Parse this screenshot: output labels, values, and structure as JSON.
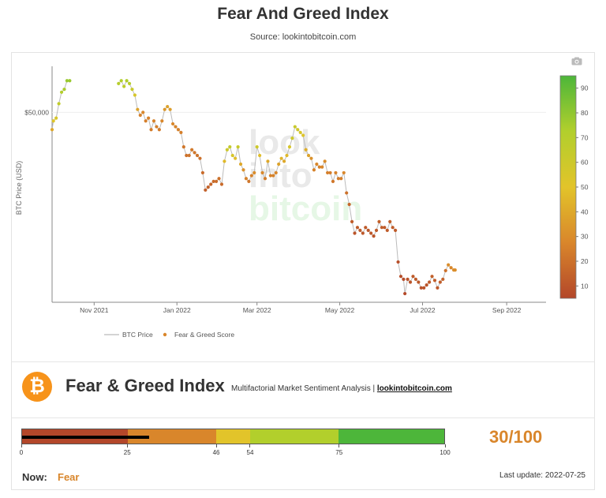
{
  "page": {
    "title": "Fear And Greed Index",
    "source": "Source: lookintobitcoin.com"
  },
  "chart_data": {
    "type": "line",
    "ylabel": "BTC Price (USD)",
    "y_tick_labels": [
      "$50,000"
    ],
    "y_tick_values": [
      50000
    ],
    "x_tick_labels": [
      "Nov 2021",
      "Jan 2022",
      "Mar 2022",
      "May 2022",
      "Jul 2022",
      "Sep 2022"
    ],
    "x_tick_dates": [
      "2021-11-01",
      "2022-01-01",
      "2022-03-01",
      "2022-05-01",
      "2022-07-01",
      "2022-09-01"
    ],
    "xlim": [
      "2021-10-01",
      "2022-09-30"
    ],
    "ylim": [
      17000,
      58000
    ],
    "legend": [
      "BTC Price",
      "Fear & Greed Score"
    ],
    "legend_position": "bottom",
    "grid": false,
    "watermark": [
      "look",
      "into",
      "bitcoin"
    ],
    "colorbar": {
      "min": 5,
      "max": 95,
      "ticks": [
        10,
        20,
        30,
        40,
        50,
        60,
        70,
        80,
        90
      ],
      "colors": [
        "#b3472a",
        "#d9862b",
        "#e2c42a",
        "#b2cf2c",
        "#4db63a"
      ]
    },
    "series": [
      {
        "name": "BTC Price",
        "color": "#bbbbbb",
        "gaps": [
          [
            "2021-10-14",
            "2021-11-19"
          ]
        ],
        "points": [
          {
            "date": "2021-10-01",
            "price": 47000,
            "score": 40
          },
          {
            "date": "2021-10-02",
            "price": 48500,
            "score": 52
          },
          {
            "date": "2021-10-04",
            "price": 49000,
            "score": 55
          },
          {
            "date": "2021-10-06",
            "price": 51500,
            "score": 66
          },
          {
            "date": "2021-10-08",
            "price": 53500,
            "score": 72
          },
          {
            "date": "2021-10-10",
            "price": 54000,
            "score": 74
          },
          {
            "date": "2021-10-12",
            "price": 55500,
            "score": 78
          },
          {
            "date": "2021-10-14",
            "price": 55500,
            "score": 78
          },
          {
            "date": "2021-11-19",
            "price": 55000,
            "score": 70
          },
          {
            "date": "2021-11-21",
            "price": 55500,
            "score": 72
          },
          {
            "date": "2021-11-23",
            "price": 54500,
            "score": 68
          },
          {
            "date": "2021-11-25",
            "price": 55500,
            "score": 73
          },
          {
            "date": "2021-11-27",
            "price": 55000,
            "score": 70
          },
          {
            "date": "2021-11-29",
            "price": 54000,
            "score": 62
          },
          {
            "date": "2021-12-01",
            "price": 53000,
            "score": 55
          },
          {
            "date": "2021-12-03",
            "price": 50500,
            "score": 38
          },
          {
            "date": "2021-12-05",
            "price": 49500,
            "score": 26
          },
          {
            "date": "2021-12-07",
            "price": 50000,
            "score": 28
          },
          {
            "date": "2021-12-09",
            "price": 48500,
            "score": 25
          },
          {
            "date": "2021-12-11",
            "price": 49000,
            "score": 26
          },
          {
            "date": "2021-12-13",
            "price": 47000,
            "score": 24
          },
          {
            "date": "2021-12-15",
            "price": 48500,
            "score": 26
          },
          {
            "date": "2021-12-17",
            "price": 47500,
            "score": 25
          },
          {
            "date": "2021-12-19",
            "price": 47000,
            "score": 24
          },
          {
            "date": "2021-12-21",
            "price": 48500,
            "score": 28
          },
          {
            "date": "2021-12-23",
            "price": 50500,
            "score": 34
          },
          {
            "date": "2021-12-25",
            "price": 51000,
            "score": 38
          },
          {
            "date": "2021-12-27",
            "price": 50500,
            "score": 36
          },
          {
            "date": "2021-12-29",
            "price": 48000,
            "score": 28
          },
          {
            "date": "2021-12-31",
            "price": 47500,
            "score": 27
          },
          {
            "date": "2022-01-02",
            "price": 47000,
            "score": 26
          },
          {
            "date": "2022-01-04",
            "price": 46500,
            "score": 25
          },
          {
            "date": "2022-01-06",
            "price": 44000,
            "score": 22
          },
          {
            "date": "2022-01-08",
            "price": 42500,
            "score": 20
          },
          {
            "date": "2022-01-10",
            "price": 42500,
            "score": 21
          },
          {
            "date": "2022-01-12",
            "price": 43500,
            "score": 23
          },
          {
            "date": "2022-01-14",
            "price": 43000,
            "score": 22
          },
          {
            "date": "2022-01-16",
            "price": 42500,
            "score": 21
          },
          {
            "date": "2022-01-18",
            "price": 42000,
            "score": 20
          },
          {
            "date": "2022-01-20",
            "price": 39500,
            "score": 18
          },
          {
            "date": "2022-01-22",
            "price": 36500,
            "score": 14
          },
          {
            "date": "2022-01-24",
            "price": 37000,
            "score": 15
          },
          {
            "date": "2022-01-26",
            "price": 37500,
            "score": 16
          },
          {
            "date": "2022-01-28",
            "price": 38000,
            "score": 18
          },
          {
            "date": "2022-01-30",
            "price": 38000,
            "score": 19
          },
          {
            "date": "2022-02-01",
            "price": 38500,
            "score": 20
          },
          {
            "date": "2022-02-03",
            "price": 37500,
            "score": 18
          },
          {
            "date": "2022-02-05",
            "price": 41500,
            "score": 46
          },
          {
            "date": "2022-02-07",
            "price": 43500,
            "score": 60
          },
          {
            "date": "2022-02-09",
            "price": 44000,
            "score": 64
          },
          {
            "date": "2022-02-11",
            "price": 42500,
            "score": 55
          },
          {
            "date": "2022-02-13",
            "price": 42000,
            "score": 48
          },
          {
            "date": "2022-02-15",
            "price": 44000,
            "score": 62
          },
          {
            "date": "2022-02-17",
            "price": 41000,
            "score": 40
          },
          {
            "date": "2022-02-19",
            "price": 40000,
            "score": 32
          },
          {
            "date": "2022-02-21",
            "price": 38500,
            "score": 26
          },
          {
            "date": "2022-02-23",
            "price": 38000,
            "score": 22
          },
          {
            "date": "2022-02-25",
            "price": 39000,
            "score": 26
          },
          {
            "date": "2022-02-27",
            "price": 39500,
            "score": 30
          },
          {
            "date": "2022-03-01",
            "price": 44000,
            "score": 60
          },
          {
            "date": "2022-03-03",
            "price": 42500,
            "score": 48
          },
          {
            "date": "2022-03-05",
            "price": 39500,
            "score": 28
          },
          {
            "date": "2022-03-07",
            "price": 38500,
            "score": 24
          },
          {
            "date": "2022-03-09",
            "price": 41500,
            "score": 40
          },
          {
            "date": "2022-03-11",
            "price": 39000,
            "score": 26
          },
          {
            "date": "2022-03-13",
            "price": 39000,
            "score": 26
          },
          {
            "date": "2022-03-15",
            "price": 39500,
            "score": 28
          },
          {
            "date": "2022-03-17",
            "price": 41000,
            "score": 38
          },
          {
            "date": "2022-03-19",
            "price": 42000,
            "score": 44
          },
          {
            "date": "2022-03-21",
            "price": 41500,
            "score": 40
          },
          {
            "date": "2022-03-23",
            "price": 42500,
            "score": 46
          },
          {
            "date": "2022-03-25",
            "price": 44000,
            "score": 55
          },
          {
            "date": "2022-03-27",
            "price": 45500,
            "score": 60
          },
          {
            "date": "2022-03-29",
            "price": 47500,
            "score": 62
          },
          {
            "date": "2022-03-31",
            "price": 47000,
            "score": 58
          },
          {
            "date": "2022-04-02",
            "price": 46500,
            "score": 55
          },
          {
            "date": "2022-04-04",
            "price": 46000,
            "score": 52
          },
          {
            "date": "2022-04-06",
            "price": 43500,
            "score": 42
          },
          {
            "date": "2022-04-08",
            "price": 42500,
            "score": 38
          },
          {
            "date": "2022-04-10",
            "price": 42000,
            "score": 32
          },
          {
            "date": "2022-04-12",
            "price": 40000,
            "score": 26
          },
          {
            "date": "2022-04-14",
            "price": 41000,
            "score": 28
          },
          {
            "date": "2022-04-16",
            "price": 40500,
            "score": 26
          },
          {
            "date": "2022-04-18",
            "price": 40500,
            "score": 28
          },
          {
            "date": "2022-04-20",
            "price": 41500,
            "score": 30
          },
          {
            "date": "2022-04-22",
            "price": 39500,
            "score": 25
          },
          {
            "date": "2022-04-24",
            "price": 39500,
            "score": 24
          },
          {
            "date": "2022-04-26",
            "price": 38000,
            "score": 22
          },
          {
            "date": "2022-04-28",
            "price": 39500,
            "score": 26
          },
          {
            "date": "2022-04-30",
            "price": 38500,
            "score": 24
          },
          {
            "date": "2022-05-02",
            "price": 38500,
            "score": 25
          },
          {
            "date": "2022-05-04",
            "price": 39500,
            "score": 28
          },
          {
            "date": "2022-05-06",
            "price": 36000,
            "score": 20
          },
          {
            "date": "2022-05-08",
            "price": 34000,
            "score": 16
          },
          {
            "date": "2022-05-10",
            "price": 31000,
            "score": 12
          },
          {
            "date": "2022-05-12",
            "price": 29000,
            "score": 10
          },
          {
            "date": "2022-05-14",
            "price": 30000,
            "score": 12
          },
          {
            "date": "2022-05-16",
            "price": 29500,
            "score": 12
          },
          {
            "date": "2022-05-18",
            "price": 29000,
            "score": 11
          },
          {
            "date": "2022-05-20",
            "price": 30000,
            "score": 12
          },
          {
            "date": "2022-05-22",
            "price": 29500,
            "score": 11
          },
          {
            "date": "2022-05-24",
            "price": 29000,
            "score": 11
          },
          {
            "date": "2022-05-26",
            "price": 28500,
            "score": 10
          },
          {
            "date": "2022-05-28",
            "price": 29500,
            "score": 12
          },
          {
            "date": "2022-05-30",
            "price": 31000,
            "score": 14
          },
          {
            "date": "2022-06-01",
            "price": 30000,
            "score": 13
          },
          {
            "date": "2022-06-03",
            "price": 30000,
            "score": 12
          },
          {
            "date": "2022-06-05",
            "price": 29500,
            "score": 12
          },
          {
            "date": "2022-06-07",
            "price": 31000,
            "score": 14
          },
          {
            "date": "2022-06-09",
            "price": 30000,
            "score": 13
          },
          {
            "date": "2022-06-11",
            "price": 29500,
            "score": 12
          },
          {
            "date": "2022-06-13",
            "price": 24000,
            "score": 8
          },
          {
            "date": "2022-06-15",
            "price": 21500,
            "score": 8
          },
          {
            "date": "2022-06-17",
            "price": 21000,
            "score": 7
          },
          {
            "date": "2022-06-18",
            "price": 18500,
            "score": 6
          },
          {
            "date": "2022-06-20",
            "price": 21000,
            "score": 9
          },
          {
            "date": "2022-06-22",
            "price": 20500,
            "score": 10
          },
          {
            "date": "2022-06-24",
            "price": 21500,
            "score": 12
          },
          {
            "date": "2022-06-26",
            "price": 21000,
            "score": 12
          },
          {
            "date": "2022-06-28",
            "price": 20500,
            "score": 11
          },
          {
            "date": "2022-06-30",
            "price": 19500,
            "score": 9
          },
          {
            "date": "2022-07-02",
            "price": 19500,
            "score": 9
          },
          {
            "date": "2022-07-04",
            "price": 20000,
            "score": 10
          },
          {
            "date": "2022-07-06",
            "price": 20500,
            "score": 12
          },
          {
            "date": "2022-07-08",
            "price": 21500,
            "score": 14
          },
          {
            "date": "2022-07-10",
            "price": 20800,
            "score": 13
          },
          {
            "date": "2022-07-12",
            "price": 19500,
            "score": 11
          },
          {
            "date": "2022-07-14",
            "price": 20500,
            "score": 13
          },
          {
            "date": "2022-07-16",
            "price": 21000,
            "score": 15
          },
          {
            "date": "2022-07-18",
            "price": 22500,
            "score": 20
          },
          {
            "date": "2022-07-20",
            "price": 23500,
            "score": 30
          },
          {
            "date": "2022-07-22",
            "price": 23000,
            "score": 28
          },
          {
            "date": "2022-07-24",
            "price": 22600,
            "score": 30
          },
          {
            "date": "2022-07-25",
            "price": 22600,
            "score": 30
          }
        ]
      },
      {
        "name": "Fear & Greed Score",
        "color": "#d9862b"
      }
    ]
  },
  "header": {
    "badge_symbol": "₿",
    "title": "Fear & Greed Index",
    "subtitle": "Multifactorial Market Sentiment Analysis | ",
    "link": "lookintobitcoin.com"
  },
  "gauge": {
    "value": 30,
    "max": 100,
    "score_label": "30/100",
    "segments": [
      {
        "from": 0,
        "to": 25,
        "color": "#b3472a"
      },
      {
        "from": 25,
        "to": 46,
        "color": "#d9862b"
      },
      {
        "from": 46,
        "to": 54,
        "color": "#e2c42a"
      },
      {
        "from": 54,
        "to": 75,
        "color": "#b2cf2c"
      },
      {
        "from": 75,
        "to": 100,
        "color": "#4db63a"
      }
    ],
    "tick_values": [
      0,
      25,
      46,
      54,
      75,
      100
    ]
  },
  "status": {
    "now_label": "Now:",
    "now_value": "Fear",
    "last_update": "Last update: 2022-07-25"
  }
}
